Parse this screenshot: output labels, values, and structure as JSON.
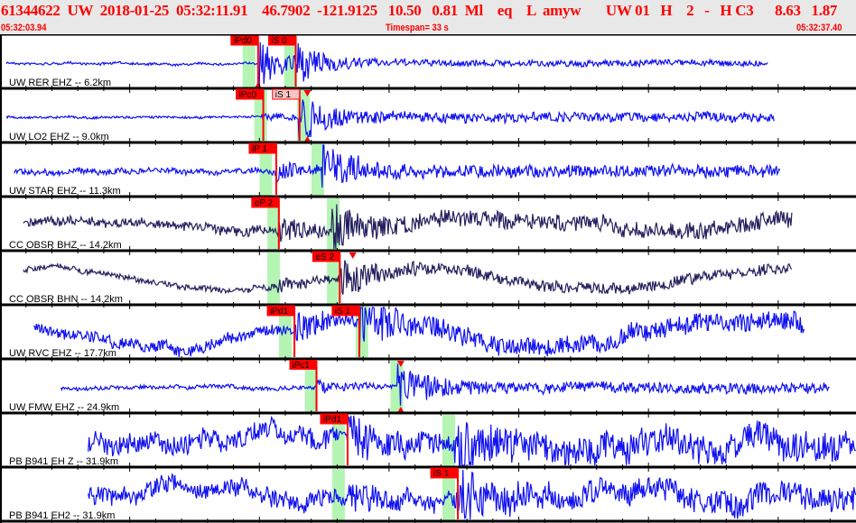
{
  "header": {
    "title": "61344622  UW  2018-01-25  05:32:11.91    46.7902  -121.9125   10.50   0.81  Ml    eq    L  amyw       UW 01   H    2   -   H C3      8.63   1.87",
    "start_time": "05:32:03.94",
    "timespan": "Timespan=  33 s",
    "end_time": "05:32:37.40"
  },
  "timespan_s": 33,
  "colors": {
    "trace_blue": "#1010f0",
    "trace_navy": "#24205e",
    "pick": "#ff0000",
    "band": "#b4f5b4",
    "pick_light": "#f6c4c4"
  },
  "traces": [
    {
      "label": "UW RER EHZ -- 6.2km",
      "color": "trace_blue",
      "start_s": 0.25,
      "end_s": 29.6,
      "noise": 1.2,
      "p_s": 9.95,
      "s_s": 11.4,
      "p_amp": 26,
      "s_amp": 14,
      "drift": 0,
      "bands": [
        9.6,
        11.2
      ],
      "picks": [
        {
          "label": "iPd0",
          "t": 9.95,
          "tri": "bottom"
        },
        {
          "label": "iS 0",
          "t": 11.4
        }
      ]
    },
    {
      "label": "UW LO2 EHZ -- 9.0km",
      "color": "trace_blue",
      "start_s": 0.25,
      "end_s": 29.85,
      "noise": 1.2,
      "p_s": 10.1,
      "s_s": 11.5,
      "p_amp": 5,
      "s_amp": 26,
      "drift": 0,
      "bands": [
        10.05,
        11.7
      ],
      "picks": [
        {
          "label": "iPc0",
          "t": 10.15
        },
        {
          "label": "iS 1",
          "t": 11.55,
          "light": true,
          "tri_at": 11.85,
          "tri": "both"
        }
      ]
    },
    {
      "label": "UW STAR EHZ -- 11.3km",
      "color": "trace_blue",
      "start_s": 0.55,
      "end_s": 30.1,
      "noise": 3,
      "p_s": 10.65,
      "s_s": 12.4,
      "p_amp": 9,
      "s_amp": 24,
      "drift": 0,
      "bands": [
        10.25,
        12.25
      ],
      "picks": [
        {
          "label": "iP 1",
          "t": 10.65
        }
      ]
    },
    {
      "label": "CC OBSR BHZ -- 14.2km",
      "color": "trace_navy",
      "start_s": 0.9,
      "end_s": 30.55,
      "noise": 5,
      "p_s": 10.7,
      "s_s": 12.8,
      "p_amp": 10,
      "s_amp": 26,
      "drift": 7,
      "bands": [
        10.55,
        12.85
      ],
      "picks": [
        {
          "label": "eP 2",
          "t": 10.75
        }
      ]
    },
    {
      "label": "CC OBSR BHN -- 14.2km",
      "color": "trace_navy",
      "start_s": 0.9,
      "end_s": 30.55,
      "noise": 3,
      "p_s": 10.7,
      "s_s": 13.1,
      "p_amp": 6,
      "s_amp": 20,
      "drift": 12,
      "bands": [
        10.55,
        12.85
      ],
      "picks": [
        {
          "label": "eS 2",
          "t": 13.1,
          "tri_at": 13.6,
          "tri": "top"
        }
      ]
    },
    {
      "label": "UW RVC EHZ -- 17.7km",
      "color": "trace_blue",
      "start_s": 1.3,
      "end_s": 31.0,
      "noise": 6,
      "p_s": 11.35,
      "s_s": 13.85,
      "p_amp": 12,
      "s_amp": 26,
      "drift": 14,
      "bands": [
        11.0,
        13.95
      ],
      "picks": [
        {
          "label": "iPd1",
          "t": 11.35
        },
        {
          "label": "iS 1",
          "t": 13.85,
          "tri_at": 13.6,
          "tri": "top"
        }
      ]
    },
    {
      "label": "UW FMW EHZ -- 24.9km",
      "color": "trace_blue",
      "start_s": 2.35,
      "end_s": 32.0,
      "noise": 2,
      "p_s": 12.2,
      "s_s": 15.3,
      "p_amp": 7,
      "s_amp": 26,
      "drift": 0,
      "bands": [
        12.0,
        15.3
      ],
      "picks": [
        {
          "label": "iPc1",
          "t": 12.2,
          "tri_at": 15.45,
          "tri": "both",
          "tri_only": true
        }
      ]
    },
    {
      "label": "PB B941 EH Z -- 31.9km",
      "color": "trace_blue",
      "start_s": 3.4,
      "end_s": 33,
      "noise": 11,
      "p_s": 13.4,
      "s_s": 17.5,
      "p_amp": 16,
      "s_amp": 28,
      "drift": 0,
      "bands": [
        13.05,
        17.3
      ],
      "picks": [
        {
          "label": "iPd1",
          "t": 13.4
        }
      ]
    },
    {
      "label": "PB B941 EH2 -- 31.9km",
      "color": "trace_blue",
      "start_s": 3.4,
      "end_s": 33,
      "noise": 9,
      "p_s": 13.4,
      "s_s": 17.65,
      "p_amp": 9,
      "s_amp": 26,
      "drift": 0,
      "bands": [
        13.05,
        17.3
      ],
      "picks": [
        {
          "label": "iS 1",
          "t": 17.65
        }
      ]
    }
  ]
}
